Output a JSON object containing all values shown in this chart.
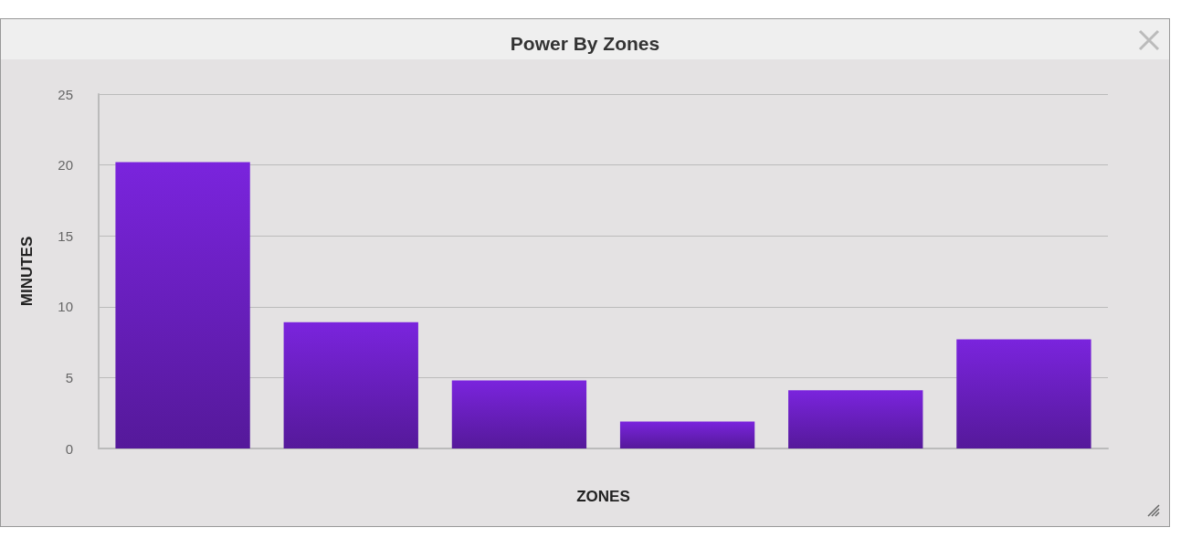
{
  "chart_data": {
    "type": "bar",
    "title": "Power By Zones",
    "xlabel": "ZONES",
    "ylabel": "MINUTES",
    "categories": [
      null,
      null,
      null,
      null,
      null,
      null
    ],
    "values": [
      20.2,
      8.9,
      4.8,
      1.9,
      4.1,
      7.7
    ],
    "color": "#6a1fc0",
    "ylim": [
      0,
      25
    ],
    "yticks": [
      0,
      5,
      10,
      15,
      20,
      25
    ],
    "grid": "y"
  }
}
